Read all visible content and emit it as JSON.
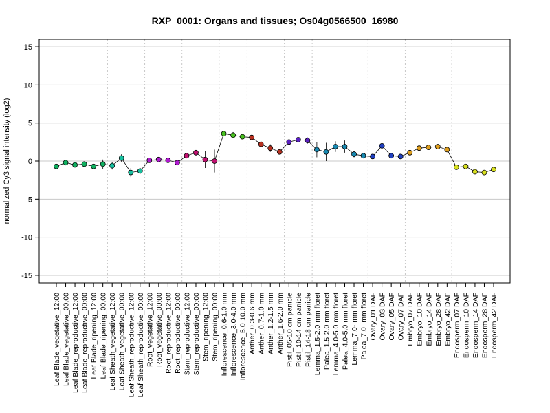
{
  "chart_data": {
    "type": "line",
    "title": "RXP_0001: Organs and tissues; Os04g0566500_16980",
    "xlabel": "",
    "ylabel": "normalized Cy3 signal intensity (log2)",
    "ylim": [
      -16,
      16
    ],
    "yticks": [
      -15,
      -10,
      -5,
      0,
      5,
      10,
      15
    ],
    "grid": true,
    "categories": [
      "Leaf Blade_vegetative_12:00",
      "Leaf Blade_vegetative_00:00",
      "Leaf Blade_reproductive_12:00",
      "Leaf Blade_reproductive_00:00",
      "Leaf Blade_ripening_12:00",
      "Leaf Blade_ripening_00:00",
      "Leaf Sheath_vegetative_12:00",
      "Leaf Sheath_vegetative_00:00",
      "Leaf Sheath_reproductive_12:00",
      "Leaf Sheath_reproductive_00:00",
      "Root_vegetative_12:00",
      "Root_vegetative_00:00",
      "Root_reproductive_12:00",
      "Root_reproductive_00:00",
      "Stem_reproductive_12:00",
      "Stem_reproductive_00:00",
      "Stem_ripening_12:00",
      "Stem_ripening_00:00",
      "Inflorescence_0.6-1.0 mm",
      "Inflorescence_3.0-4.0 mm",
      "Inflorescence_5.0-10.0 mm",
      "Anther_0.3-0.6 mm",
      "Anther_0.7-1.0 mm",
      "Anther_1.2-1.5 mm",
      "Anther_1.6-2.0 mm",
      "Pistil_05-10 cm panicle",
      "Pistil_10-14 cm panicle",
      "Pistil_14-18 cm panicle",
      "Lemma_1.5-2.0 mm floret",
      "Palea_1.5-2.0 mm floret",
      "Lemma_4.0-5.0 mm floret",
      "Palea_4.0-5.0 mm floret",
      "Lemma_7.0- mm floret",
      "Palea_7.0- mm floret",
      "Ovary_01 DAF",
      "Ovary_03 DAF",
      "Ovary_05 DAF",
      "Ovary_07 DAF",
      "Embryo_07 DAF",
      "Embryo_10 DAF",
      "Embryo_14 DAF",
      "Embryo_28 DAF",
      "Embryo_42 DAF",
      "Endosperm_07 DAF",
      "Endosperm_10 DAF",
      "Endosperm_14 DAF",
      "Endosperm_28 DAF",
      "Endosperm_42 DAF"
    ],
    "series": [
      {
        "values": [
          -0.7,
          -0.2,
          -0.5,
          -0.4,
          -0.7,
          -0.4,
          -0.6,
          0.4,
          -1.5,
          -1.3,
          0.1,
          0.2,
          0.1,
          -0.2,
          0.7,
          1.1,
          0.2,
          0.0,
          3.6,
          3.4,
          3.2,
          3.1,
          2.2,
          1.7,
          1.2,
          2.5,
          2.8,
          2.7,
          1.5,
          1.2,
          1.9,
          1.9,
          0.9,
          0.7,
          0.6,
          2.0,
          0.7,
          0.6,
          1.1,
          1.7,
          1.8,
          1.9,
          1.5,
          -0.8,
          -0.7,
          -1.4,
          -1.5,
          -1.1
        ],
        "errors": [
          0.3,
          0.2,
          0.2,
          0.3,
          0.2,
          0.6,
          0.5,
          0.5,
          0.6,
          0.4,
          0.3,
          0.2,
          0.2,
          0.3,
          0.2,
          0.3,
          1.1,
          1.5,
          0.2,
          0.4,
          0.3,
          0.3,
          0.3,
          0.5,
          0.3,
          0.3,
          0.3,
          0.4,
          1.0,
          1.2,
          0.7,
          0.8,
          0.4,
          0.3,
          0.2,
          0.3,
          0.3,
          0.3,
          0.2,
          0.2,
          0.2,
          0.2,
          0.2,
          0.2,
          0.2,
          0.2,
          0.2,
          0.2
        ],
        "colors": [
          "#10b060",
          "#10b060",
          "#10b060",
          "#10b060",
          "#10b060",
          "#10b060",
          "#16c0a0",
          "#16c0a0",
          "#16c0a0",
          "#16c0a0",
          "#b01ad0",
          "#b01ad0",
          "#b01ad0",
          "#b01ad0",
          "#c01070",
          "#c01070",
          "#c01070",
          "#c01070",
          "#48c020",
          "#48c020",
          "#48c020",
          "#b83020",
          "#b83020",
          "#b83020",
          "#b83020",
          "#5a20c0",
          "#5a20c0",
          "#5a20c0",
          "#1888b0",
          "#1888b0",
          "#1888b0",
          "#1888b0",
          "#1888b0",
          "#1888b0",
          "#2040c0",
          "#2040c0",
          "#2040c0",
          "#2040c0",
          "#e0a020",
          "#e0a020",
          "#e0a020",
          "#e0a020",
          "#e0a020",
          "#d8e020",
          "#d8e020",
          "#d8e020",
          "#d8e020",
          "#d8e020"
        ]
      }
    ],
    "group_separators_after": [
      5,
      9,
      13,
      17,
      20,
      24,
      27,
      33,
      37,
      42
    ]
  }
}
